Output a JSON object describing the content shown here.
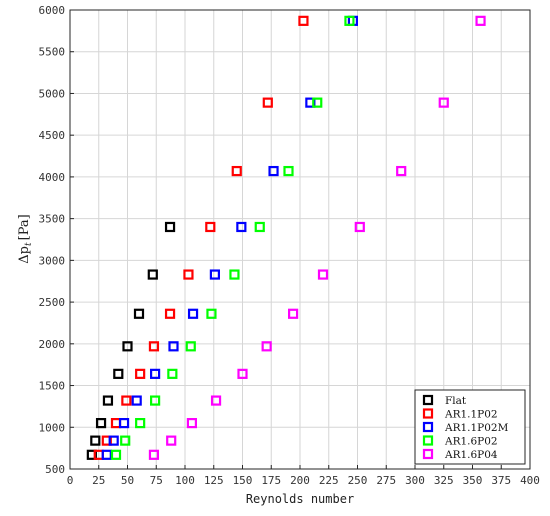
{
  "chart_data": {
    "type": "scatter",
    "title": "",
    "xlabel": "Reynolds number",
    "ylabel": "Δp_t [Pa]",
    "ylabel_main": "Δp",
    "ylabel_sub": "t",
    "ylabel_unit": "[Pa]",
    "xlim": [
      0,
      400
    ],
    "ylim": [
      500,
      6000
    ],
    "xticks": [
      0,
      25,
      50,
      75,
      100,
      125,
      150,
      175,
      200,
      225,
      250,
      275,
      300,
      325,
      350,
      375,
      400
    ],
    "yticks": [
      500,
      1000,
      1500,
      2000,
      2500,
      3000,
      3500,
      4000,
      4500,
      5000,
      5500,
      6000
    ],
    "xtick_labels": [
      "0",
      "25",
      "50",
      "75",
      "100",
      "125",
      "150",
      "175",
      "200",
      "225",
      "250",
      "275",
      "300",
      "325",
      "350",
      "375",
      "400"
    ],
    "ytick_labels": [
      "500",
      "1000",
      "1500",
      "2000",
      "2500",
      "3000",
      "3500",
      "4000",
      "4500",
      "5000",
      "5500",
      "6000"
    ],
    "grid": true,
    "legend_position": "bottom-right",
    "marker": "open-square",
    "series": [
      {
        "name": "Flat",
        "color": "#000000",
        "points": [
          [
            19,
            670
          ],
          [
            22,
            840
          ],
          [
            27,
            1050
          ],
          [
            33,
            1320
          ],
          [
            42,
            1640
          ],
          [
            50,
            1970
          ],
          [
            60,
            2360
          ],
          [
            72,
            2830
          ],
          [
            87,
            3400
          ]
        ]
      },
      {
        "name": "AR1.1P02",
        "color": "#ff0000",
        "points": [
          [
            25,
            670
          ],
          [
            32,
            840
          ],
          [
            40,
            1050
          ],
          [
            49,
            1320
          ],
          [
            61,
            1640
          ],
          [
            73,
            1970
          ],
          [
            87,
            2360
          ],
          [
            103,
            2830
          ],
          [
            122,
            3400
          ],
          [
            145,
            4070
          ],
          [
            172,
            4890
          ],
          [
            203,
            5870
          ]
        ]
      },
      {
        "name": "AR1.1P02M",
        "color": "#0000ff",
        "points": [
          [
            32,
            670
          ],
          [
            38,
            840
          ],
          [
            47,
            1050
          ],
          [
            58,
            1320
          ],
          [
            74,
            1640
          ],
          [
            90,
            1970
          ],
          [
            107,
            2360
          ],
          [
            126,
            2830
          ],
          [
            149,
            3400
          ],
          [
            177,
            4070
          ],
          [
            209,
            4890
          ],
          [
            246,
            5870
          ]
        ]
      },
      {
        "name": "AR1.6P02",
        "color": "#00ff00",
        "points": [
          [
            40,
            670
          ],
          [
            48,
            840
          ],
          [
            61,
            1050
          ],
          [
            74,
            1320
          ],
          [
            89,
            1640
          ],
          [
            105,
            1970
          ],
          [
            123,
            2360
          ],
          [
            143,
            2830
          ],
          [
            165,
            3400
          ],
          [
            190,
            4070
          ],
          [
            215,
            4890
          ],
          [
            243,
            5870
          ]
        ]
      },
      {
        "name": "AR1.6P04",
        "color": "#ff00ff",
        "points": [
          [
            73,
            670
          ],
          [
            88,
            840
          ],
          [
            106,
            1050
          ],
          [
            127,
            1320
          ],
          [
            150,
            1640
          ],
          [
            171,
            1970
          ],
          [
            194,
            2360
          ],
          [
            220,
            2830
          ],
          [
            252,
            3400
          ],
          [
            288,
            4070
          ],
          [
            325,
            4890
          ],
          [
            357,
            5870
          ]
        ]
      }
    ]
  }
}
